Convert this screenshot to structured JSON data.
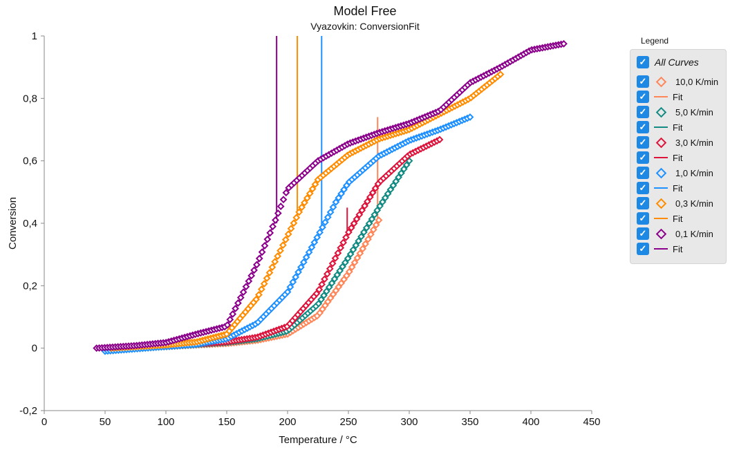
{
  "chart_data": {
    "type": "scatter",
    "title": "Model Free",
    "subtitle": "Vyazovkin: ConversionFit",
    "xlabel": "Temperature / °C",
    "ylabel": "Conversion",
    "xlim": [
      0,
      450
    ],
    "ylim": [
      -0.2,
      1
    ],
    "xticks": [
      "0",
      "50",
      "100",
      "150",
      "200",
      "250",
      "300",
      "350",
      "400",
      "450"
    ],
    "yticks": [
      "-0,2",
      "0",
      "0,2",
      "0,4",
      "0,6",
      "0,8",
      "1"
    ],
    "grid": false,
    "legend_position": "right",
    "legend_title": "Legend",
    "legend_all": "All Curves",
    "series": [
      {
        "name": "10,0 K/min",
        "color": "#ff8659",
        "x": [
          50,
          100,
          150,
          175,
          200,
          225,
          250,
          262,
          275
        ],
        "y": [
          0,
          0.005,
          0.015,
          0.025,
          0.045,
          0.105,
          0.24,
          0.32,
          0.41
        ],
        "fit_spike": {
          "x": 274,
          "y": [
            0.4,
            0.74
          ]
        }
      },
      {
        "name": "5,0 K/min",
        "color": "#138a82",
        "x": [
          50,
          100,
          150,
          175,
          200,
          225,
          250,
          275,
          300
        ],
        "y": [
          0,
          0.005,
          0.018,
          0.03,
          0.055,
          0.14,
          0.29,
          0.45,
          0.6
        ]
      },
      {
        "name": "3,0 K/min",
        "color": "#dc143c",
        "x": [
          50,
          100,
          150,
          175,
          200,
          225,
          250,
          275,
          300,
          325
        ],
        "y": [
          0,
          0.006,
          0.02,
          0.035,
          0.07,
          0.18,
          0.37,
          0.53,
          0.62,
          0.668
        ],
        "fit_spike": {
          "x": 249,
          "y": [
            0.38,
            0.45
          ]
        }
      },
      {
        "name": "1,0 K/min",
        "color": "#1e90ff",
        "x": [
          50,
          100,
          125,
          150,
          175,
          200,
          225,
          240,
          250,
          275,
          300,
          325,
          350
        ],
        "y": [
          -0.01,
          0.005,
          0.012,
          0.03,
          0.08,
          0.18,
          0.36,
          0.47,
          0.53,
          0.615,
          0.665,
          0.7,
          0.74
        ],
        "fit_spike": {
          "x": 228,
          "y": [
            0.38,
            1
          ]
        }
      },
      {
        "name": "0,3 K/min",
        "color": "#ff8c00",
        "x": [
          55,
          100,
          125,
          150,
          175,
          200,
          210,
          225,
          250,
          275,
          300,
          325,
          350,
          375
        ],
        "y": [
          0,
          0.01,
          0.02,
          0.045,
          0.16,
          0.36,
          0.44,
          0.54,
          0.62,
          0.67,
          0.7,
          0.75,
          0.8,
          0.877
        ],
        "fit_spike": {
          "x": 208,
          "y": [
            0.42,
            1
          ]
        }
      },
      {
        "name": "0,1 K/min",
        "color": "#8b008b",
        "x": [
          43,
          75,
          100,
          125,
          150,
          175,
          190,
          200,
          225,
          250,
          275,
          300,
          325,
          350,
          375,
          400,
          427
        ],
        "y": [
          0,
          0.008,
          0.018,
          0.045,
          0.07,
          0.27,
          0.41,
          0.51,
          0.6,
          0.655,
          0.69,
          0.72,
          0.76,
          0.85,
          0.9,
          0.955,
          0.975
        ],
        "fit_spike": {
          "x": 191,
          "y": [
            0.4,
            1
          ]
        }
      }
    ],
    "fit_label": "Fit"
  }
}
